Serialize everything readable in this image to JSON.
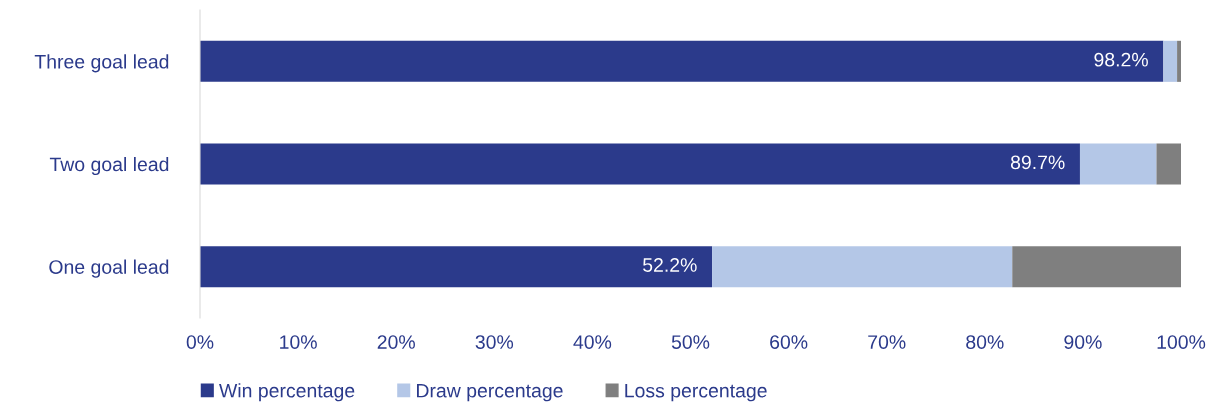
{
  "chart_data": {
    "type": "bar",
    "orientation": "horizontal",
    "stacked": true,
    "categories": [
      "Three goal lead",
      "Two goal lead",
      "One goal lead"
    ],
    "series": [
      {
        "name": "Win percentage",
        "color": "#2b3a8b",
        "values": [
          98.2,
          89.7,
          52.2
        ],
        "value_labels": [
          "98.2%",
          "89.7%",
          "52.2%"
        ]
      },
      {
        "name": "Draw percentage",
        "color": "#b4c7e7",
        "values": [
          1.4,
          7.8,
          30.6
        ]
      },
      {
        "name": "Loss percentage",
        "color": "#7f7f7f",
        "values": [
          0.4,
          2.5,
          17.2
        ]
      }
    ],
    "xlim": [
      0,
      100
    ],
    "xticks": [
      {
        "value": 0,
        "label": "0%"
      },
      {
        "value": 10,
        "label": "10%"
      },
      {
        "value": 20,
        "label": "20%"
      },
      {
        "value": 30,
        "label": "30%"
      },
      {
        "value": 40,
        "label": "40%"
      },
      {
        "value": 50,
        "label": "50%"
      },
      {
        "value": 60,
        "label": "60%"
      },
      {
        "value": 70,
        "label": "70%"
      },
      {
        "value": 80,
        "label": "80%"
      },
      {
        "value": 90,
        "label": "90%"
      },
      {
        "value": 100,
        "label": "100%"
      }
    ],
    "grid": false,
    "legend": "bottom"
  }
}
